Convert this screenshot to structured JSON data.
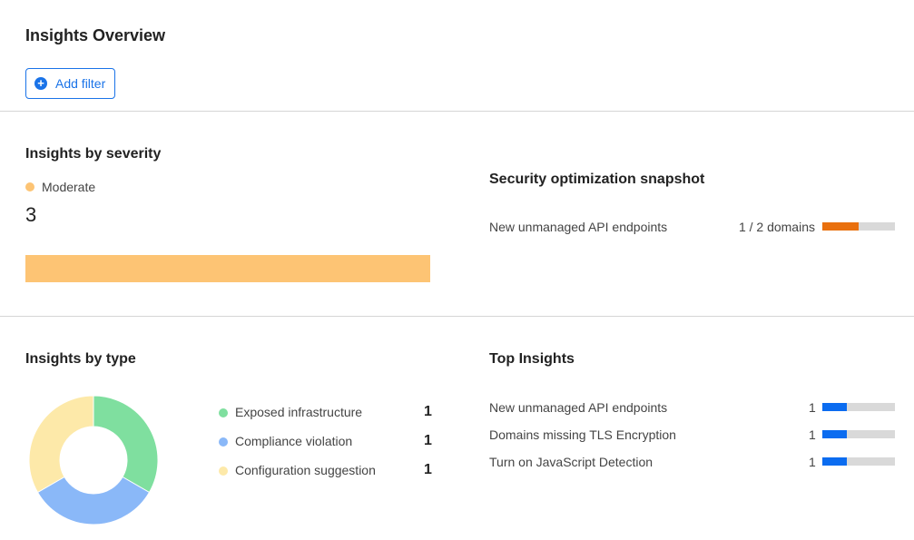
{
  "header": {
    "title": "Insights Overview",
    "add_filter_label": "Add filter",
    "add_filter_icon": "plus-circle-icon"
  },
  "severity": {
    "title": "Insights by severity",
    "legend": "Moderate",
    "count": "3",
    "color": "#fdc474"
  },
  "snapshot": {
    "title": "Security optimization snapshot",
    "items": [
      {
        "label": "New unmanaged API endpoints",
        "value": "1 / 2 domains",
        "fraction": 0.5,
        "color": "#e9700e"
      }
    ]
  },
  "types": {
    "title": "Insights by type",
    "items": [
      {
        "label": "Exposed infrastructure",
        "count": "1",
        "color": "#7fdf9f"
      },
      {
        "label": "Compliance violation",
        "count": "1",
        "color": "#8ab8f8"
      },
      {
        "label": "Configuration suggestion",
        "count": "1",
        "color": "#fde9a9"
      }
    ]
  },
  "top": {
    "title": "Top Insights",
    "total": 3,
    "color": "#0b6cf0",
    "items": [
      {
        "label": "New unmanaged API endpoints",
        "count": "1"
      },
      {
        "label": "Domains missing TLS Encryption",
        "count": "1"
      },
      {
        "label": "Turn on JavaScript Detection",
        "count": "1"
      }
    ]
  }
}
